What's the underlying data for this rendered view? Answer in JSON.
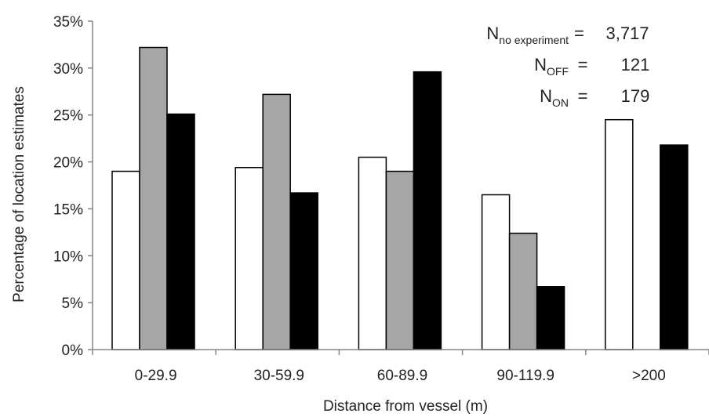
{
  "chart_data": {
    "type": "bar",
    "xlabel": "Distance from vessel (m)",
    "ylabel": "Percentage of location estimates",
    "ylim": [
      0,
      35
    ],
    "yticks": [
      0,
      5,
      10,
      15,
      20,
      25,
      30,
      35
    ],
    "ytick_suffix": "%",
    "grid": false,
    "legend": "none",
    "categories": [
      "0-29.9",
      "30-59.9",
      "60-89.9",
      "90-119.9",
      ">200"
    ],
    "series": [
      {
        "key": "no_experiment",
        "values": [
          19.0,
          19.4,
          20.5,
          16.5,
          24.5
        ],
        "color": "#ffffff"
      },
      {
        "key": "off",
        "values": [
          32.2,
          27.2,
          19.0,
          12.4,
          0
        ],
        "color": "#a6a6a6"
      },
      {
        "key": "on",
        "values": [
          25.1,
          16.7,
          29.6,
          6.7,
          21.8
        ],
        "color": "#000000"
      }
    ],
    "annotations": [
      {
        "main": "N",
        "sub": "no experiment",
        "eq": "=",
        "value": "3,717"
      },
      {
        "main": "N",
        "sub": "OFF",
        "eq": "=",
        "value": "121"
      },
      {
        "main": "N",
        "sub": "ON",
        "eq": "=",
        "value": "179"
      }
    ]
  }
}
